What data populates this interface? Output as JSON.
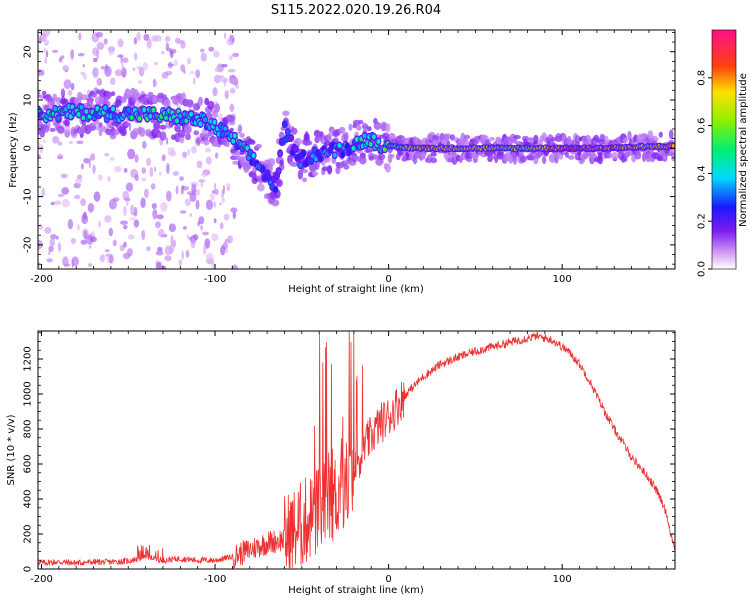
{
  "figure": {
    "title": "S115.2022.020.19.26.R04"
  },
  "chart_data": [
    {
      "type": "heatmap",
      "xlabel": "Height of straight line (km)",
      "ylabel": "Frequency (Hz)",
      "xlim": [
        -202,
        165
      ],
      "ylim": [
        -25,
        24.5
      ],
      "xticks": [
        -200,
        -100,
        0,
        100
      ],
      "yticks": [
        -20,
        -10,
        0,
        10,
        20
      ],
      "colorbar": {
        "label": "Normalized spectral amplitude",
        "range": [
          0.0,
          1.0
        ],
        "ticks": [
          0.0,
          0.2,
          0.4,
          0.6,
          0.8
        ],
        "colormap_stops": [
          {
            "v": 0.0,
            "color": "#ffffff"
          },
          {
            "v": 0.06,
            "color": "#d9a8f5"
          },
          {
            "v": 0.16,
            "color": "#7b1cf0"
          },
          {
            "v": 0.26,
            "color": "#1a1aff"
          },
          {
            "v": 0.38,
            "color": "#00d8ff"
          },
          {
            "v": 0.5,
            "color": "#00f070"
          },
          {
            "v": 0.62,
            "color": "#8cf000"
          },
          {
            "v": 0.74,
            "color": "#ffe000"
          },
          {
            "v": 0.85,
            "color": "#ff4010"
          },
          {
            "v": 1.0,
            "color": "#ff1088"
          }
        ]
      },
      "ridge": [
        {
          "x": -200,
          "f": 7.0,
          "amp": 0.38
        },
        {
          "x": -180,
          "f": 7.5,
          "amp": 0.42
        },
        {
          "x": -160,
          "f": 7.2,
          "amp": 0.36
        },
        {
          "x": -140,
          "f": 7.0,
          "amp": 0.45
        },
        {
          "x": -120,
          "f": 6.5,
          "amp": 0.4
        },
        {
          "x": -105,
          "f": 5.5,
          "amp": 0.36
        },
        {
          "x": -90,
          "f": 2.0,
          "amp": 0.38
        },
        {
          "x": -75,
          "f": -3.5,
          "amp": 0.32
        },
        {
          "x": -65,
          "f": -8.0,
          "amp": 0.2
        },
        {
          "x": -60,
          "f": 4.0,
          "amp": 0.26
        },
        {
          "x": -52,
          "f": -2.5,
          "amp": 0.24
        },
        {
          "x": -40,
          "f": -1.0,
          "amp": 0.3
        },
        {
          "x": -25,
          "f": 0.0,
          "amp": 0.32
        },
        {
          "x": -12,
          "f": 2.0,
          "amp": 0.42
        },
        {
          "x": 0,
          "f": 0.3,
          "amp": 0.46
        },
        {
          "x": 20,
          "f": 0.0,
          "amp": 0.8
        },
        {
          "x": 50,
          "f": 0.0,
          "amp": 0.66
        },
        {
          "x": 80,
          "f": 0.0,
          "amp": 0.58
        },
        {
          "x": 105,
          "f": 0.0,
          "amp": 0.9
        },
        {
          "x": 120,
          "f": 0.0,
          "amp": 0.85
        },
        {
          "x": 150,
          "f": 0.3,
          "amp": 0.7
        },
        {
          "x": 165,
          "f": 0.5,
          "amp": 0.72
        }
      ]
    },
    {
      "type": "line",
      "xlabel": "Height of straight line (km)",
      "ylabel": "SNR (10 * v/v)",
      "xlim": [
        -202,
        165
      ],
      "ylim": [
        0,
        1360
      ],
      "xticks": [
        -200,
        -100,
        0,
        100
      ],
      "yticks": [
        0,
        200,
        400,
        600,
        800,
        1000,
        1200
      ],
      "color": "#ee3030",
      "series": [
        {
          "x": [
            -202,
            -190,
            -180,
            -170,
            -160,
            -150,
            -140,
            -130,
            -120,
            -110,
            -100,
            -90,
            -80,
            -70,
            -60,
            -50,
            -45,
            -40,
            -35,
            -30,
            -25,
            -20,
            -15,
            -10,
            -5,
            0,
            10,
            20,
            30,
            40,
            50,
            60,
            70,
            80,
            85,
            90,
            95,
            100,
            105,
            110,
            115,
            120,
            125,
            130,
            140,
            150,
            155,
            160,
            165
          ],
          "y": [
            35,
            40,
            35,
            40,
            40,
            45,
            70,
            50,
            60,
            50,
            50,
            70,
            110,
            150,
            170,
            250,
            300,
            330,
            380,
            420,
            480,
            560,
            680,
            760,
            830,
            870,
            1000,
            1100,
            1170,
            1210,
            1245,
            1270,
            1295,
            1320,
            1330,
            1320,
            1305,
            1270,
            1230,
            1170,
            1090,
            990,
            890,
            800,
            640,
            520,
            440,
            320,
            100
          ]
        }
      ]
    }
  ]
}
